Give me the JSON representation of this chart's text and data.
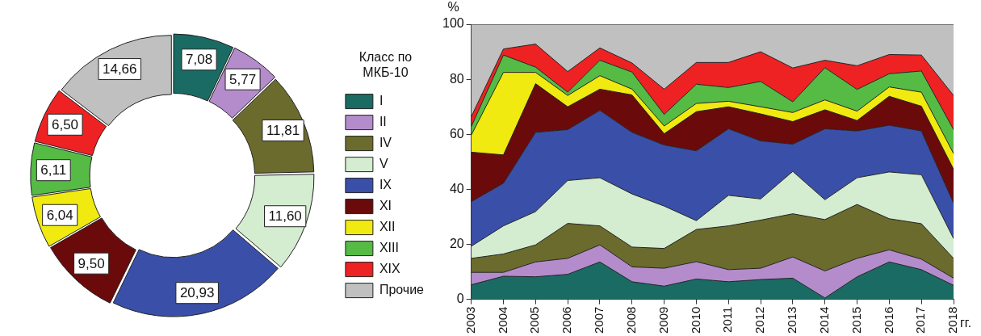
{
  "chart_data": [
    {
      "type": "donut",
      "categories": [
        "I",
        "II",
        "IV",
        "V",
        "IX",
        "XI",
        "XII",
        "XIII",
        "XIX",
        "Прочие"
      ],
      "values": [
        7.08,
        5.77,
        11.81,
        11.6,
        20.93,
        9.5,
        6.04,
        6.11,
        6.5,
        14.66
      ],
      "value_labels": [
        "7,08",
        "5,77",
        "11,81",
        "11,60",
        "20,93",
        "9,50",
        "6,04",
        "6,11",
        "6,50",
        "14,66"
      ],
      "colors": [
        "#1a6b63",
        "#b48ccc",
        "#6b6b2e",
        "#d4ecd0",
        "#3a4fa8",
        "#6b0a0a",
        "#f0ea10",
        "#55bb44",
        "#ee2222",
        "#c0c0c0"
      ],
      "legend": "right",
      "legend_title": "Класс по МКБ-10"
    },
    {
      "type": "area",
      "stacked": true,
      "ylabel": "%",
      "xlabel": "гг.",
      "categories": [
        "2003",
        "2004",
        "2005",
        "2006",
        "2007",
        "2008",
        "2009",
        "2010",
        "2011",
        "2012",
        "2013",
        "2014",
        "2015",
        "2016",
        "2017",
        "2018"
      ],
      "ylim": [
        0,
        100
      ],
      "yticks": [
        0,
        20,
        40,
        60,
        80,
        100
      ],
      "grid": false,
      "legend": false,
      "marker": "none",
      "series": [
        {
          "color": "#1a6b63",
          "values": [
            5.3,
            8.4,
            8.2,
            9.1,
            13.6,
            6.4,
            4.8,
            7.4,
            6.4,
            7.2,
            7.7,
            0.5,
            8.2,
            13.6,
            10.8,
            5.1
          ]
        },
        {
          "color": "#b48ccc",
          "values": [
            4.5,
            1.4,
            5.4,
            5.8,
            6.2,
            5.4,
            6.5,
            6.3,
            4.4,
            4.1,
            7.7,
            9.8,
            6.7,
            4.4,
            3.8,
            2.6
          ]
        },
        {
          "color": "#6b6b2e",
          "values": [
            5.1,
            6.7,
            6.2,
            12.7,
            6.9,
            7.2,
            7.2,
            11.7,
            15.9,
            17.5,
            15.7,
            18.7,
            19.6,
            11.3,
            12.9,
            7.2
          ]
        },
        {
          "color": "#d4ecd0",
          "values": [
            4.4,
            10.2,
            12.1,
            15.6,
            17.5,
            19.3,
            15.4,
            3.2,
            11.1,
            7.7,
            15.4,
            7.2,
            9.7,
            17.0,
            17.8,
            7.2
          ]
        },
        {
          "color": "#3a4fa8",
          "values": [
            16.2,
            15.5,
            28.8,
            18.5,
            24.5,
            22.4,
            22.2,
            25.4,
            24.2,
            21.1,
            9.9,
            25.8,
            17.0,
            17.0,
            15.9,
            12.9
          ]
        },
        {
          "color": "#6b0a0a",
          "values": [
            18.0,
            10.3,
            17.7,
            8.3,
            7.7,
            13.6,
            4.1,
            14.2,
            8.0,
            9.8,
            8.2,
            6.9,
            3.8,
            10.5,
            9.0,
            12.3
          ]
        },
        {
          "color": "#f0ea10",
          "values": [
            6.2,
            30.0,
            4.1,
            4.1,
            4.9,
            2.1,
            2.8,
            3.0,
            2.0,
            2.6,
            3.3,
            3.6,
            3.4,
            3.4,
            5.1,
            5.7
          ]
        },
        {
          "color": "#55bb44",
          "values": [
            3.1,
            6.3,
            1.9,
            1.2,
            5.6,
            6.2,
            4.2,
            7.0,
            5.0,
            9.2,
            3.9,
            11.7,
            7.9,
            4.8,
            7.7,
            8.7
          ]
        },
        {
          "color": "#ee2222",
          "values": [
            3.6,
            2.2,
            8.4,
            7.5,
            4.5,
            3.3,
            9.2,
            7.9,
            9.1,
            10.8,
            12.3,
            2.7,
            8.6,
            7.0,
            5.8,
            12.4
          ]
        },
        {
          "color": "#c0c0c0",
          "values": [
            33.6,
            9.0,
            7.2,
            17.2,
            8.6,
            14.1,
            23.6,
            13.9,
            13.9,
            10.0,
            15.9,
            13.1,
            15.1,
            11.0,
            11.2,
            25.9
          ]
        }
      ]
    }
  ]
}
